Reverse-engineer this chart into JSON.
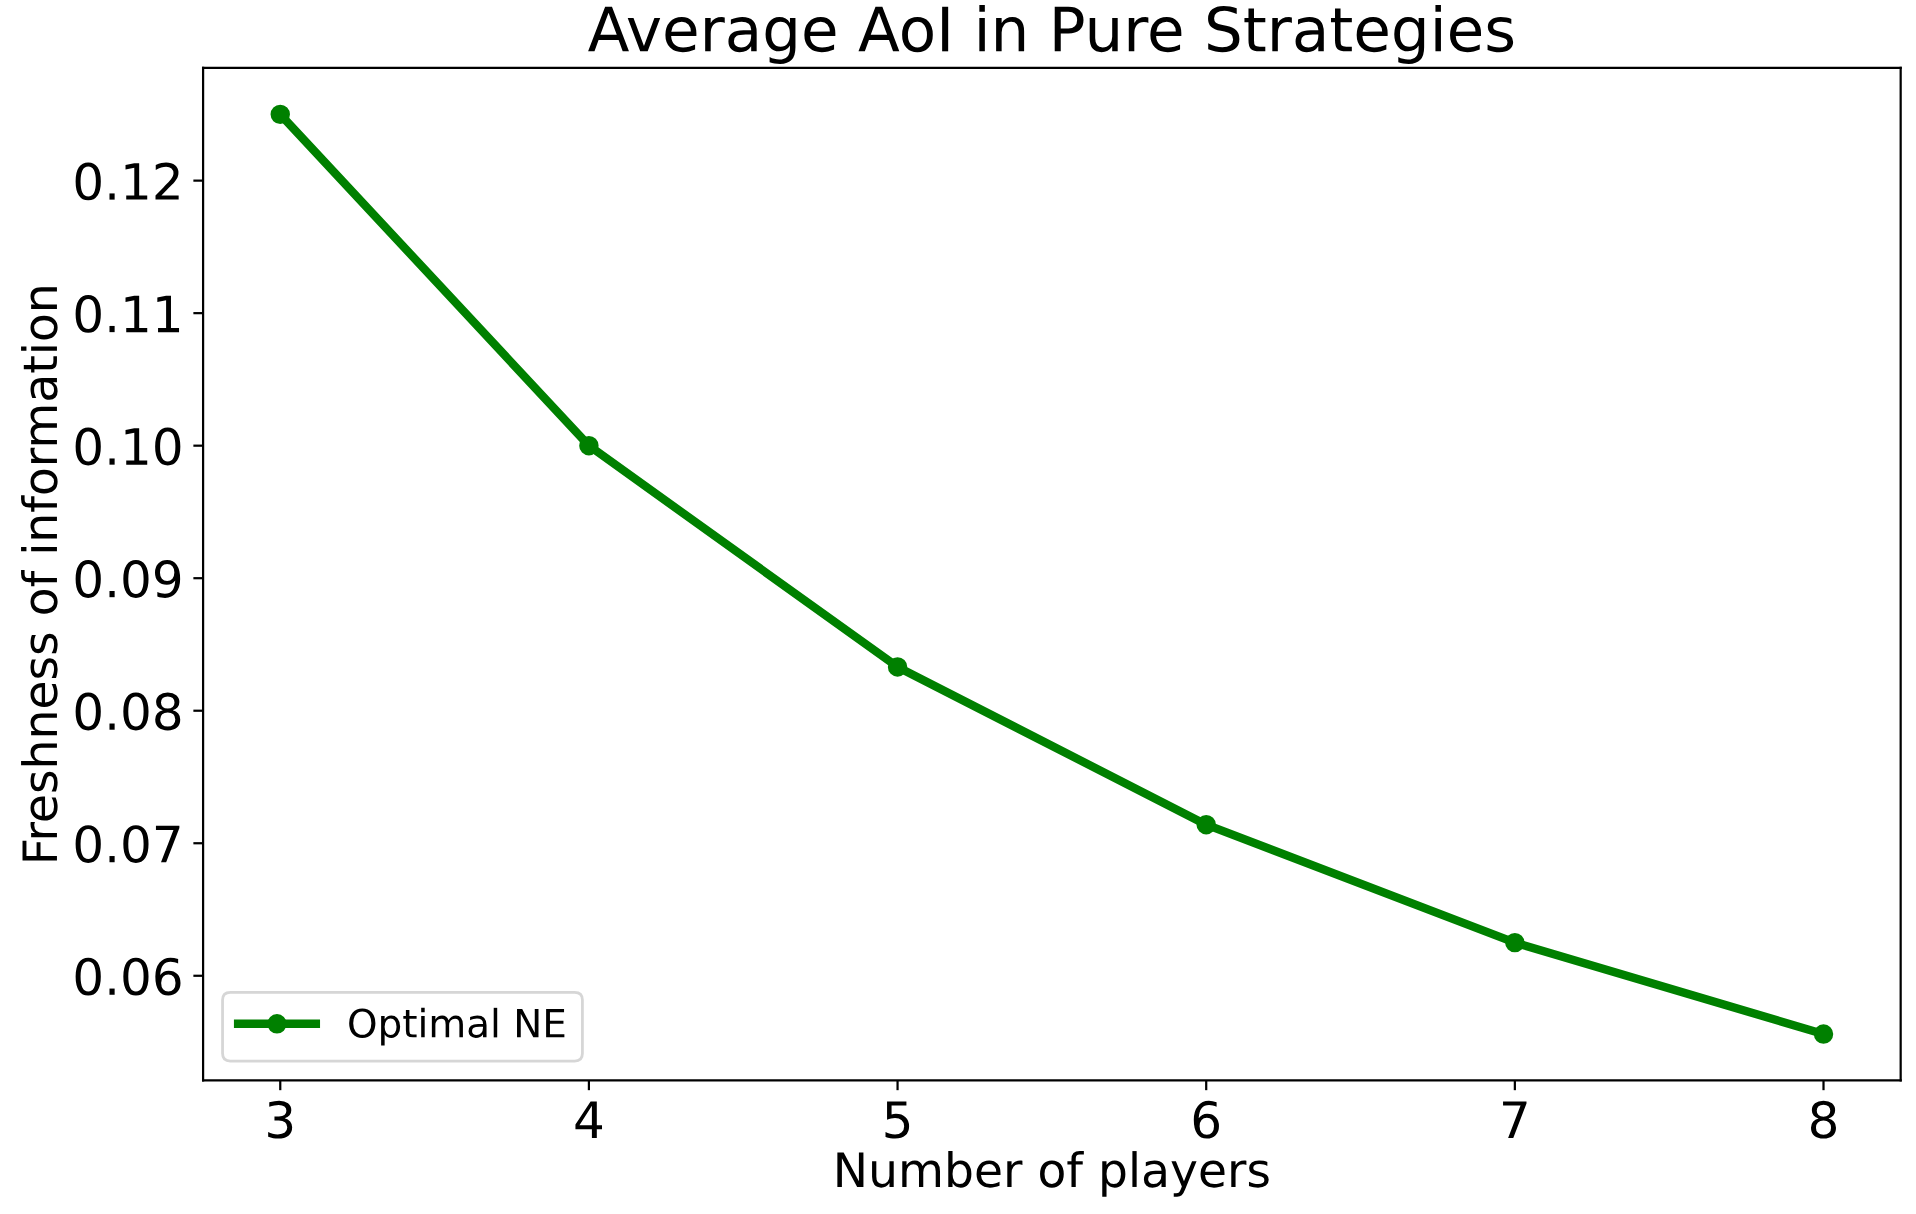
{
  "chart_data": {
    "type": "line",
    "title": "Average AoI in Pure Strategies",
    "xlabel": "Number of players",
    "ylabel": "Freshness of information",
    "x": [
      3,
      4,
      5,
      6,
      7,
      8
    ],
    "series": [
      {
        "name": "Optimal NE",
        "color": "#008000",
        "values": [
          0.125,
          0.1,
          0.0833,
          0.0714,
          0.0625,
          0.0556
        ]
      }
    ],
    "xlim": [
      2.75,
      8.25
    ],
    "xticks": [
      3,
      4,
      5,
      6,
      7,
      8
    ],
    "ylim": [
      0.0521,
      0.1285
    ],
    "yticks": [
      {
        "value": 0.06,
        "label": "0.06"
      },
      {
        "value": 0.07,
        "label": "0.07"
      },
      {
        "value": 0.08,
        "label": "0.08"
      },
      {
        "value": 0.09,
        "label": "0.09"
      },
      {
        "value": 0.1,
        "label": "0.10"
      },
      {
        "value": 0.11,
        "label": "0.11"
      },
      {
        "value": 0.12,
        "label": "0.12"
      }
    ],
    "marker": "circle",
    "line_style": "solid",
    "legend": "bottom left",
    "grid": false
  }
}
